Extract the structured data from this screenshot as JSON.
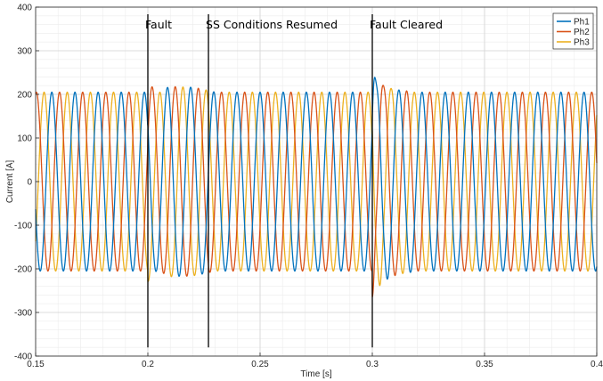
{
  "chart_data": {
    "type": "line",
    "xlabel": "Time [s]",
    "ylabel": "Current [A]",
    "xlim": [
      0.15,
      0.4
    ],
    "ylim": [
      -400,
      400
    ],
    "xticks": [
      "0.15",
      "0.2",
      "0.25",
      "0.3",
      "0.35",
      "0.4"
    ],
    "yticks": [
      "400",
      "300",
      "200",
      "100",
      "0",
      "-100",
      "-200",
      "-300",
      "-400"
    ],
    "grid": true,
    "minor_grid": true,
    "legend_position": "top-right",
    "series": [
      {
        "name": "Ph1",
        "color": "#0072BD",
        "amplitude": 205,
        "phase_deg": 0
      },
      {
        "name": "Ph2",
        "color": "#D95319",
        "amplitude": 205,
        "phase_deg": -120
      },
      {
        "name": "Ph3",
        "color": "#EDB120",
        "amplitude": 205,
        "phase_deg": 120
      }
    ],
    "frequency_hz": 97,
    "annotations": [
      {
        "x": 0.2,
        "label": "Fault"
      },
      {
        "x": 0.227,
        "label": "SS Conditions Resumed"
      },
      {
        "x": 0.3,
        "label": "Fault Cleared"
      }
    ]
  }
}
